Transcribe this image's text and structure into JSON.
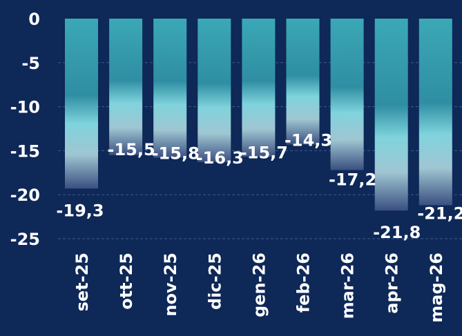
{
  "chart_data": {
    "type": "bar",
    "categories": [
      "set-25",
      "ott-25",
      "nov-25",
      "dic-25",
      "gen-26",
      "feb-26",
      "mar-26",
      "apr-26",
      "mag-26"
    ],
    "values": [
      -19.3,
      -15.5,
      -15.8,
      -16.3,
      -15.7,
      -14.3,
      -17.2,
      -21.8,
      -21.2
    ],
    "data_labels": [
      "-19,3",
      "-15,5",
      "-15,8",
      "-16,3",
      "-15,7",
      "-14,3",
      "-17,2",
      "-21,8",
      "-21,2"
    ],
    "yticks": [
      0,
      -5,
      -10,
      -15,
      -20,
      -25
    ],
    "ytick_labels": [
      "0",
      "-5",
      "-10",
      "-15",
      "-20",
      "-25"
    ],
    "ylim": [
      -25,
      0
    ],
    "grid": true,
    "colors": {
      "background": "#0e2858",
      "bar_top": "#3ba8b6",
      "bar_mid": "#7fd3dc",
      "bar_bottom": "#3a4f80",
      "text": "#ffffff"
    }
  }
}
